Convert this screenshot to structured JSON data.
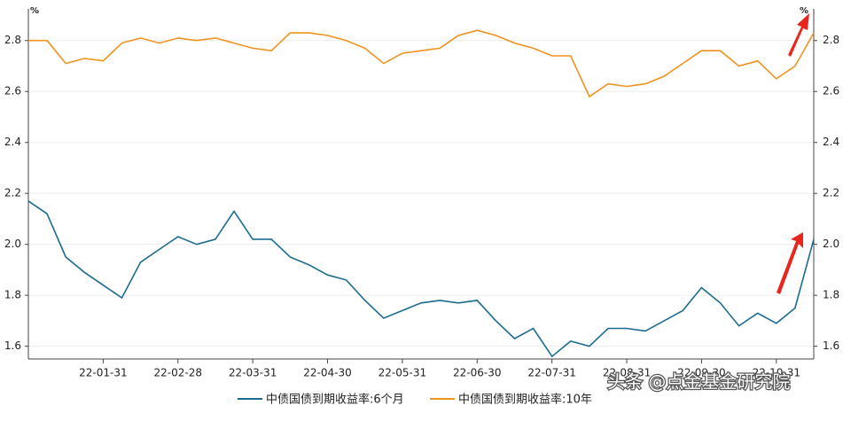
{
  "chart_data": {
    "type": "line",
    "y_label": "%",
    "y2_label": "%",
    "x": [
      "22-01-04",
      "22-01-10",
      "22-01-17",
      "22-01-24",
      "22-01-31",
      "22-02-07",
      "22-02-14",
      "22-02-21",
      "22-02-28",
      "22-03-08",
      "22-03-16",
      "22-03-24",
      "22-03-31",
      "22-04-08",
      "22-04-15",
      "22-04-22",
      "22-04-30",
      "22-05-09",
      "22-05-16",
      "22-05-24",
      "22-05-31",
      "22-06-08",
      "22-06-15",
      "22-06-22",
      "22-06-30",
      "22-07-08",
      "22-07-15",
      "22-07-22",
      "22-07-31",
      "22-08-08",
      "22-08-15",
      "22-08-22",
      "22-08-31",
      "22-09-08",
      "22-09-15",
      "22-09-22",
      "22-09-30",
      "22-10-12",
      "22-10-18",
      "22-10-24",
      "22-10-31",
      "22-11-07",
      "22-11-14"
    ],
    "xticks": [
      "22-01-31",
      "22-02-28",
      "22-03-31",
      "22-04-30",
      "22-05-31",
      "22-06-30",
      "22-07-31",
      "22-08-31",
      "22-09-30",
      "22-10-31"
    ],
    "ylim": [
      1.55,
      2.9
    ],
    "yticks": [
      1.6,
      1.8,
      {
        "value": 2,
        "label": "2.0"
      },
      2.2,
      2.4,
      2.6,
      2.8
    ],
    "y2lim": [
      1.55,
      2.9
    ],
    "y2ticks": [
      1.6,
      1.8,
      {
        "value": 2,
        "label": "2.0"
      },
      2.2,
      2.4,
      2.6,
      2.8
    ],
    "grid": true,
    "series": [
      {
        "name": "中债国债到期收益率:6个月",
        "color": "#1b6b91",
        "axis": "y",
        "values": [
          2.17,
          2.12,
          1.95,
          1.89,
          1.84,
          1.79,
          1.93,
          1.98,
          2.03,
          2.0,
          2.02,
          2.13,
          2.02,
          2.02,
          1.95,
          1.92,
          1.88,
          1.86,
          1.78,
          1.71,
          1.74,
          1.77,
          1.78,
          1.77,
          1.78,
          1.7,
          1.63,
          1.67,
          1.56,
          1.62,
          1.6,
          1.67,
          1.67,
          1.66,
          1.7,
          1.74,
          1.83,
          1.77,
          1.68,
          1.73,
          1.69,
          1.75,
          2.02
        ]
      },
      {
        "name": "中债国债到期收益率:10年",
        "color": "#f0921e",
        "axis": "y2",
        "values": [
          2.8,
          2.8,
          2.71,
          2.73,
          2.72,
          2.79,
          2.81,
          2.79,
          2.81,
          2.8,
          2.81,
          2.79,
          2.77,
          2.76,
          2.83,
          2.83,
          2.82,
          2.8,
          2.77,
          2.71,
          2.75,
          2.76,
          2.77,
          2.82,
          2.84,
          2.82,
          2.79,
          2.77,
          2.74,
          2.74,
          2.58,
          2.63,
          2.62,
          2.63,
          2.66,
          2.71,
          2.76,
          2.76,
          2.7,
          2.72,
          2.65,
          2.7,
          2.83
        ]
      }
    ]
  },
  "watermark": "头条 @点金基金研究院"
}
